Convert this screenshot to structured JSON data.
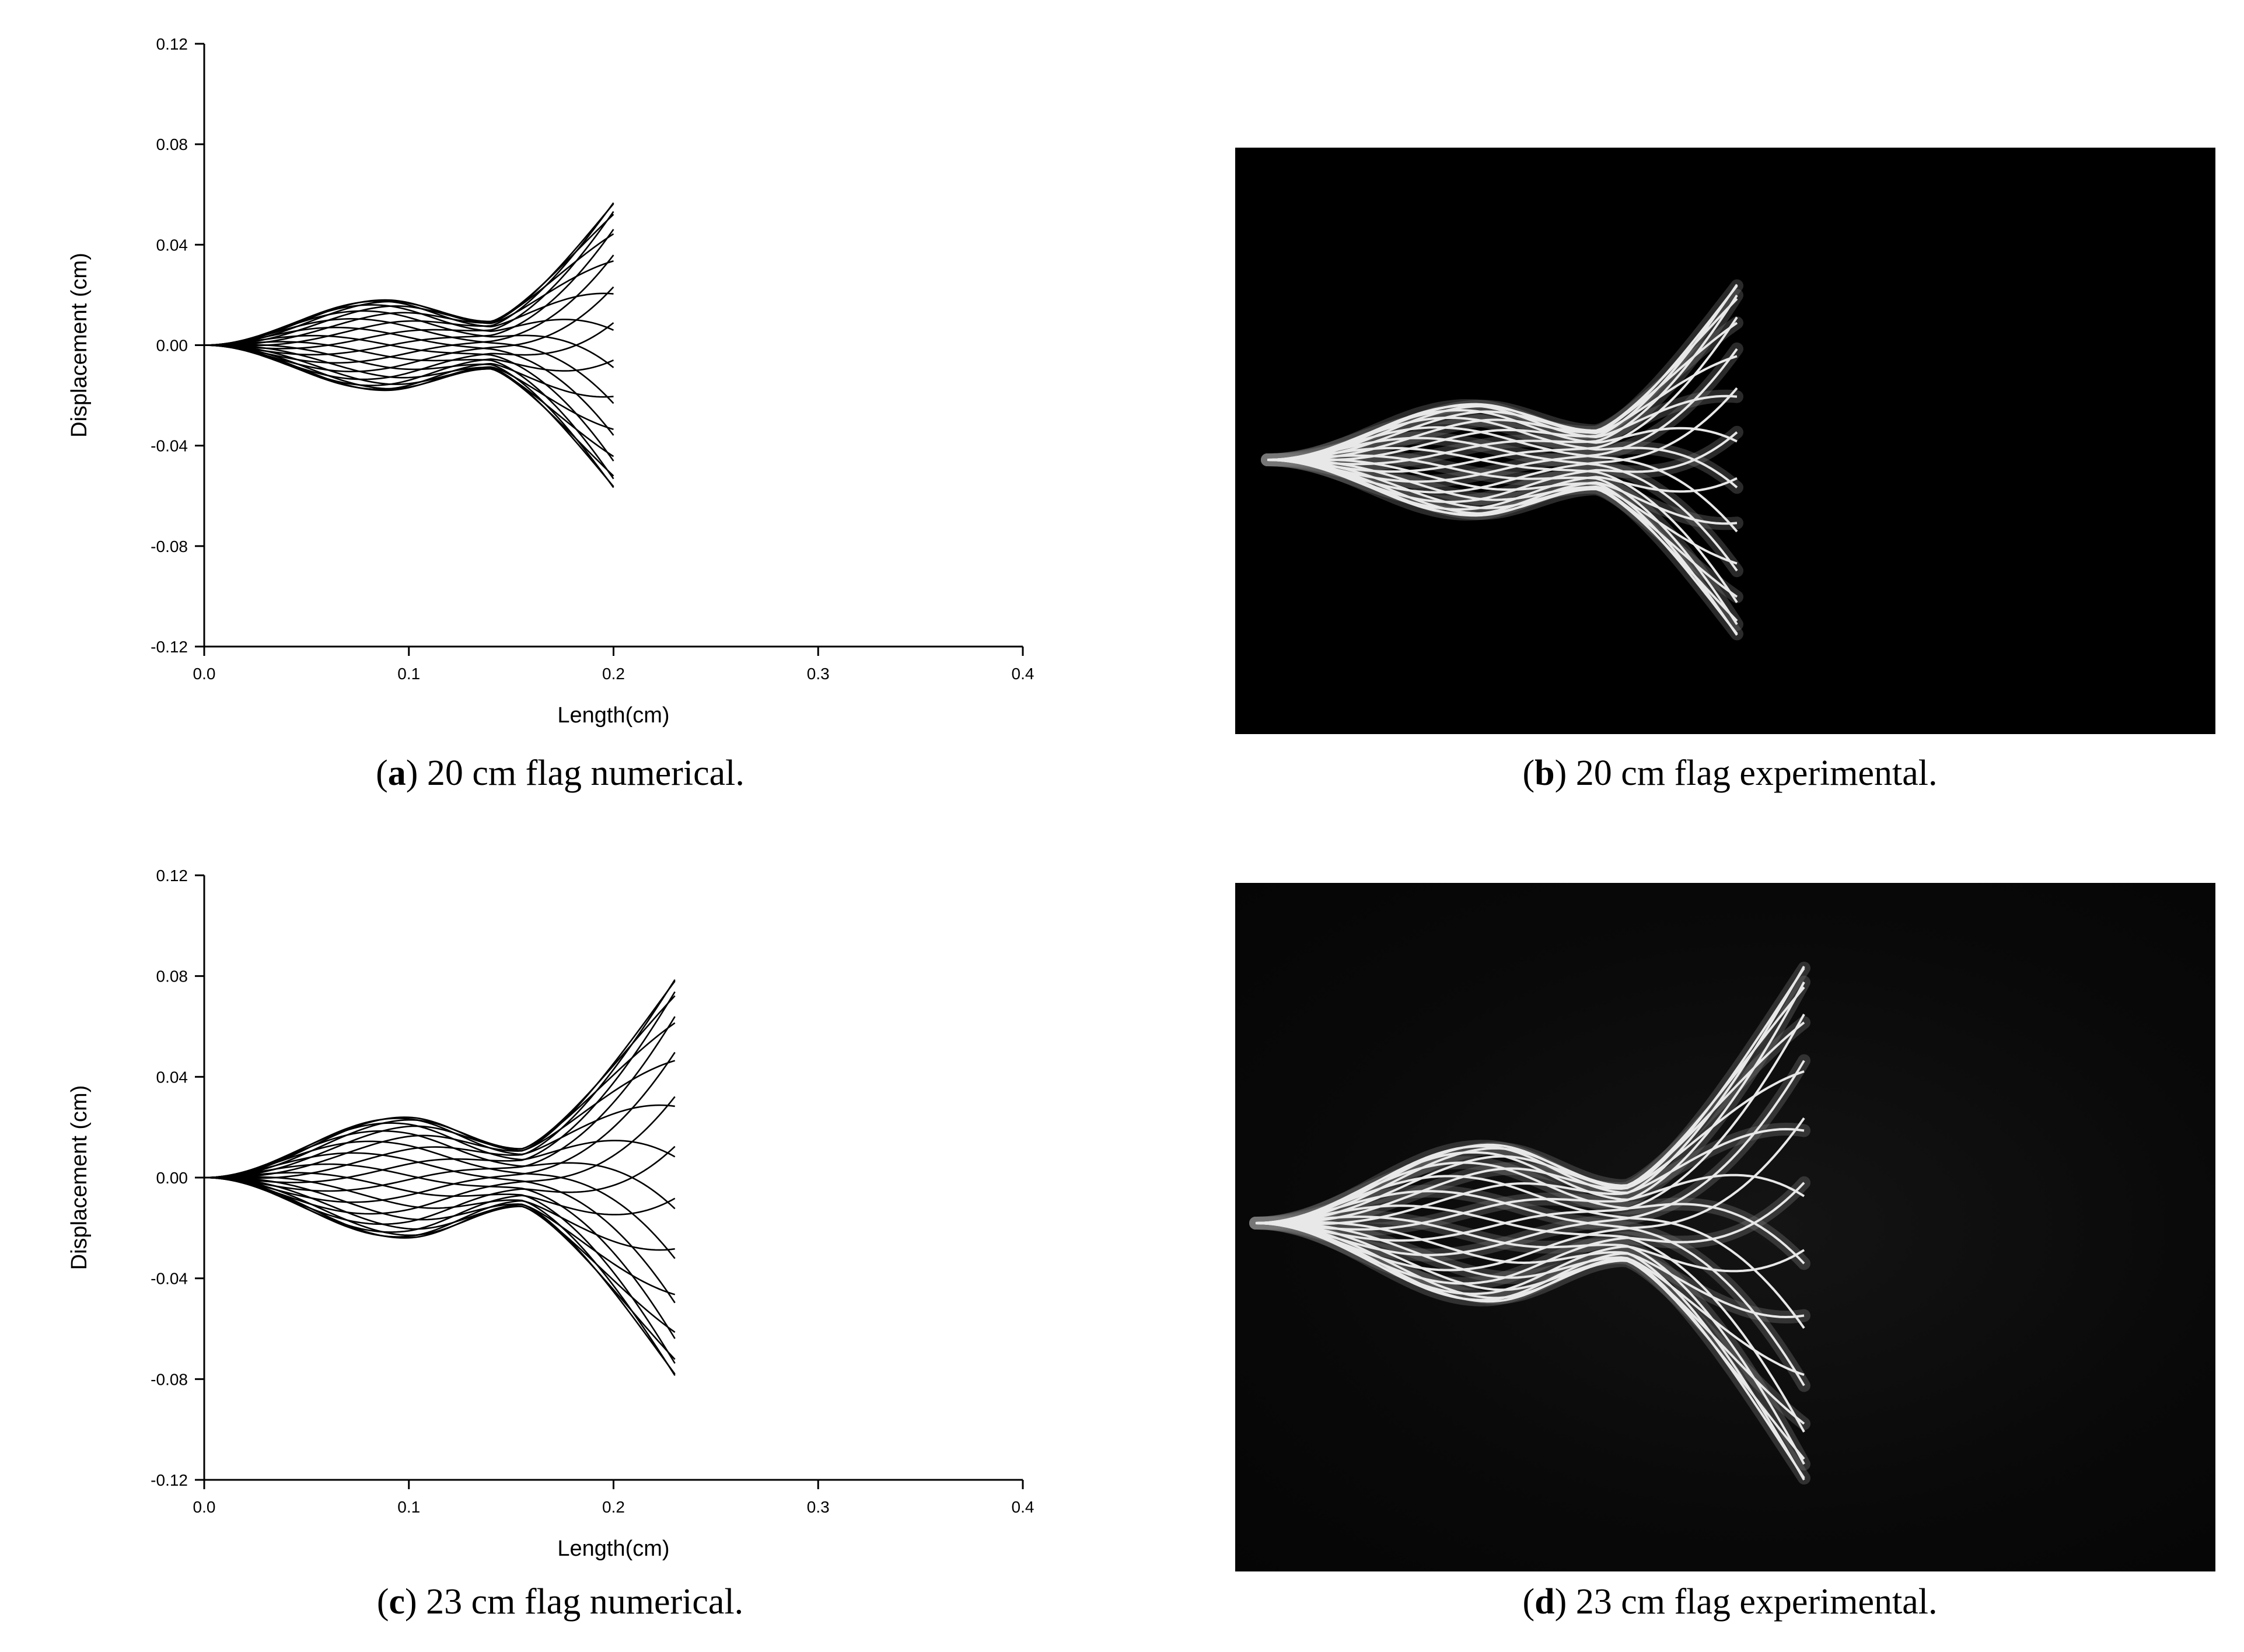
{
  "chart_data": [
    {
      "type": "line",
      "panel": "a",
      "xlabel": "Length(cm)",
      "ylabel": "Displacement (cm)",
      "xlim": [
        0.0,
        0.4
      ],
      "ylim": [
        -0.12,
        0.12
      ],
      "xticks": [
        "0.0",
        "0.1",
        "0.2",
        "0.3",
        "0.4"
      ],
      "yticks": [
        "0.12",
        "0.08",
        "0.04",
        "0.00",
        "-0.04",
        "-0.08",
        "-0.12"
      ],
      "flag_length": 0.2,
      "mid_amplitude": 0.018,
      "node_x": 0.14,
      "node_amplitude": 0.0095,
      "tip_amplitude": 0.057,
      "phases_deg": [
        0,
        15,
        30,
        45,
        60,
        75,
        90,
        105,
        120,
        135,
        150,
        165,
        180,
        195,
        210,
        225,
        240,
        255,
        270,
        285,
        300,
        315,
        330,
        345
      ],
      "grid": false
    },
    {
      "type": "line",
      "panel": "c",
      "xlabel": "Length(cm)",
      "ylabel": "Displacement (cm)",
      "xlim": [
        0.0,
        0.4
      ],
      "ylim": [
        -0.12,
        0.12
      ],
      "xticks": [
        "0.0",
        "0.1",
        "0.2",
        "0.3",
        "0.4"
      ],
      "yticks": [
        "0.12",
        "0.08",
        "0.04",
        "0.00",
        "-0.04",
        "-0.08",
        "-0.12"
      ],
      "flag_length": 0.23,
      "mid_amplitude": 0.024,
      "node_x": 0.155,
      "node_amplitude": 0.0115,
      "tip_amplitude": 0.079,
      "phases_deg": [
        0,
        15,
        30,
        45,
        60,
        75,
        90,
        105,
        120,
        135,
        150,
        165,
        180,
        195,
        210,
        225,
        240,
        255,
        270,
        285,
        300,
        315,
        330,
        345
      ],
      "grid": false
    }
  ],
  "captions": {
    "a": {
      "letter": "a",
      "text": " 20 cm flag numerical."
    },
    "b": {
      "letter": "b",
      "text": " 20 cm flag experimental."
    },
    "c": {
      "letter": "c",
      "text": " 23 cm flag numerical."
    },
    "d": {
      "letter": "d",
      "text": " 23 cm flag experimental."
    }
  },
  "colors": {
    "line": "#000000",
    "photo_background": "#000000",
    "flag_stroke": "#e8e8e8"
  }
}
